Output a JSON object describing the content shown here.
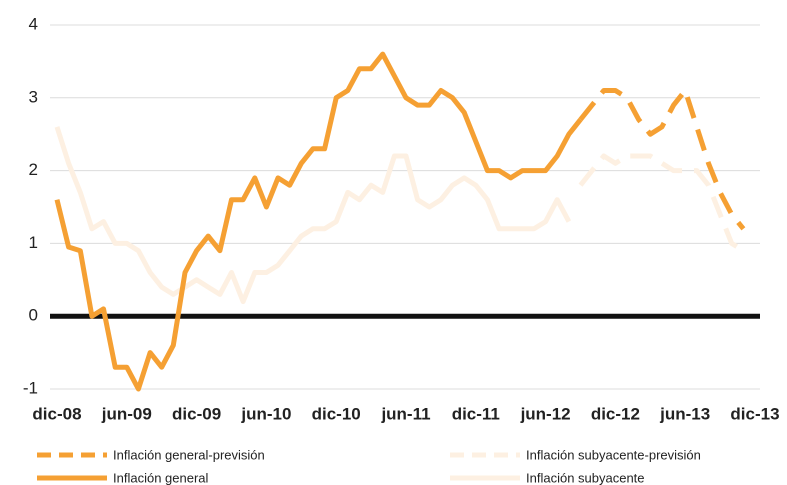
{
  "chart_data": {
    "type": "line",
    "categories": [
      "dic-08",
      null,
      null,
      null,
      null,
      null,
      "jun-09",
      null,
      null,
      null,
      null,
      null,
      "dic-09",
      null,
      null,
      null,
      null,
      null,
      "jun-10",
      null,
      null,
      null,
      null,
      null,
      "dic-10",
      null,
      null,
      null,
      null,
      null,
      "jun-11",
      null,
      null,
      null,
      null,
      null,
      "dic-11",
      null,
      null,
      null,
      null,
      null,
      "jun-12",
      null,
      null,
      null,
      null,
      null,
      "dic-12",
      null,
      null,
      null,
      null,
      null,
      "jun-13",
      null,
      null,
      null,
      null,
      null,
      "dic-13"
    ],
    "series": [
      {
        "name": "Inflación general-previsión",
        "color": "#f5a033",
        "dashed": true,
        "values": [
          null,
          null,
          null,
          null,
          null,
          null,
          null,
          null,
          null,
          null,
          null,
          null,
          null,
          null,
          null,
          null,
          null,
          null,
          null,
          null,
          null,
          null,
          null,
          null,
          null,
          null,
          null,
          null,
          null,
          null,
          null,
          null,
          null,
          null,
          null,
          null,
          null,
          null,
          null,
          null,
          null,
          null,
          null,
          null,
          null,
          2.7,
          2.9,
          3.1,
          3.1,
          3.0,
          2.7,
          2.5,
          2.6,
          2.9,
          3.1,
          2.6,
          2.1,
          1.7,
          1.4,
          1.2,
          null
        ]
      },
      {
        "name": "Inflación subyacente-previsión",
        "color": "#fdf0e2",
        "dashed": true,
        "values": [
          null,
          null,
          null,
          null,
          null,
          null,
          null,
          null,
          null,
          null,
          null,
          null,
          null,
          null,
          null,
          null,
          null,
          null,
          null,
          null,
          null,
          null,
          null,
          null,
          null,
          null,
          null,
          null,
          null,
          null,
          null,
          null,
          null,
          null,
          null,
          null,
          null,
          null,
          null,
          null,
          null,
          null,
          null,
          null,
          null,
          1.8,
          2.0,
          2.2,
          2.1,
          2.2,
          2.2,
          2.2,
          2.1,
          2.0,
          2.0,
          2.0,
          1.8,
          1.4,
          1.0,
          0.9,
          null
        ]
      },
      {
        "name": "Inflación general",
        "color": "#f5a033",
        "dashed": false,
        "values": [
          1.6,
          0.95,
          0.9,
          0.0,
          0.1,
          -0.7,
          -0.7,
          -1.0,
          -0.5,
          -0.7,
          -0.4,
          0.6,
          0.9,
          1.1,
          0.9,
          1.6,
          1.6,
          1.9,
          1.5,
          1.9,
          1.8,
          2.1,
          2.3,
          2.3,
          3.0,
          3.1,
          3.4,
          3.4,
          3.6,
          3.3,
          3.0,
          2.9,
          2.9,
          3.1,
          3.0,
          2.8,
          2.4,
          2.0,
          2.0,
          1.9,
          2.0,
          2.0,
          2.0,
          2.2,
          2.5,
          2.7,
          null,
          null,
          null,
          null,
          null,
          null,
          null,
          null,
          null,
          null,
          null,
          null,
          null,
          null,
          null
        ]
      },
      {
        "name": "Inflación subyacente",
        "color": "#fdf0e2",
        "dashed": false,
        "values": [
          2.6,
          2.1,
          1.7,
          1.2,
          1.3,
          1.0,
          1.0,
          0.9,
          0.6,
          0.4,
          0.3,
          0.4,
          0.5,
          0.4,
          0.3,
          0.6,
          0.2,
          0.6,
          0.6,
          0.7,
          0.9,
          1.1,
          1.2,
          1.2,
          1.3,
          1.7,
          1.6,
          1.8,
          1.7,
          2.2,
          2.2,
          1.6,
          1.5,
          1.6,
          1.8,
          1.9,
          1.8,
          1.6,
          1.2,
          1.2,
          1.2,
          1.2,
          1.3,
          1.6,
          1.3,
          null,
          null,
          null,
          null,
          null,
          null,
          null,
          null,
          null,
          null,
          null,
          null,
          null,
          null,
          null,
          null
        ]
      }
    ],
    "ylim": [
      -1,
      4
    ],
    "yticks": [
      -1,
      0,
      1,
      2,
      3,
      4
    ],
    "grid": true
  }
}
